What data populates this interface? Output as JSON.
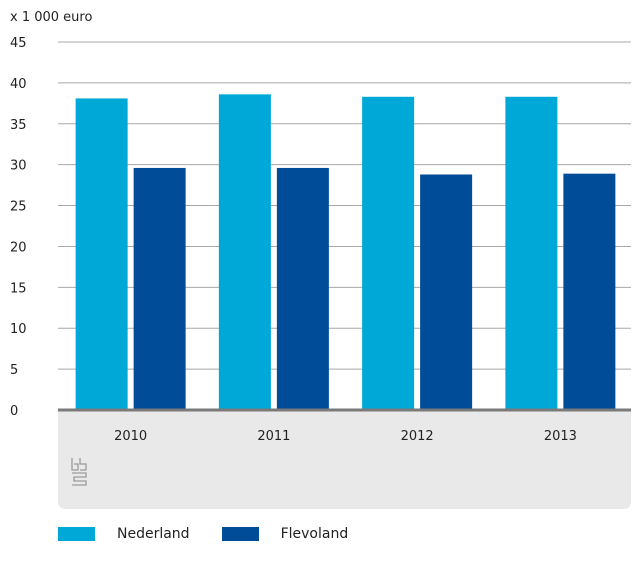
{
  "chart_data": {
    "type": "bar",
    "unit_label": "x 1 000 euro",
    "categories": [
      "2010",
      "2011",
      "2012",
      "2013"
    ],
    "series": [
      {
        "name": "Nederland",
        "color": "#00a8d8",
        "values": [
          38.1,
          38.6,
          38.3,
          38.3
        ]
      },
      {
        "name": "Flevoland",
        "color": "#004c99",
        "values": [
          29.6,
          29.6,
          28.8,
          28.9
        ]
      }
    ],
    "ylim": [
      0,
      45
    ],
    "yticks": [
      0,
      5,
      10,
      15,
      20,
      25,
      30,
      35,
      40,
      45
    ],
    "grid": true,
    "legend_position": "bottom-left",
    "footer_logo": "cbs"
  }
}
